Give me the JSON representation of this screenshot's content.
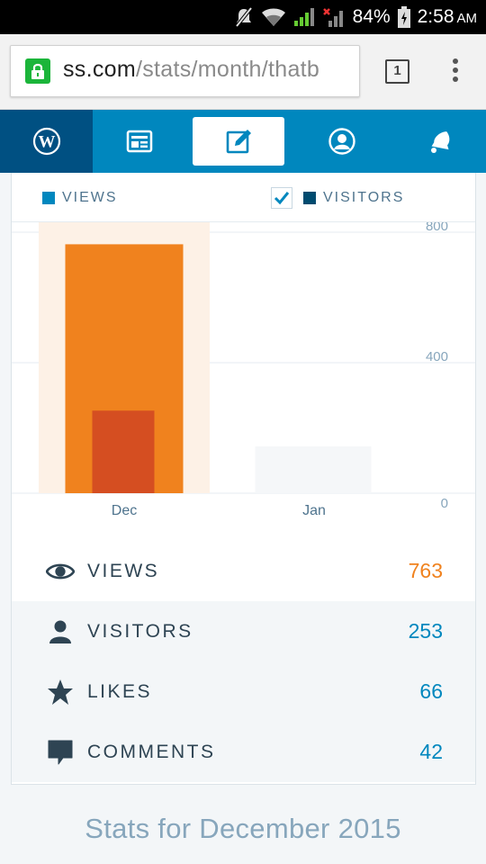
{
  "status_bar": {
    "battery": "84%",
    "time": "2:58",
    "ampm": "AM"
  },
  "browser": {
    "url_host": "ss.com",
    "url_path": "/stats/month/thatb",
    "tab_count": "1"
  },
  "nav": {
    "items": [
      {
        "icon": "wordpress-logo-icon",
        "active": true
      },
      {
        "icon": "reader-icon"
      },
      {
        "icon": "write-post-icon",
        "selected": true
      },
      {
        "icon": "me-profile-icon"
      },
      {
        "icon": "notifications-bell-icon"
      }
    ]
  },
  "legend": {
    "views_label": "VIEWS",
    "visitors_label": "VISITORS",
    "views_color": "#0087be",
    "visitors_color": "#004b6f"
  },
  "chart_data": {
    "type": "bar",
    "categories": [
      "Dec",
      "Jan"
    ],
    "series": [
      {
        "name": "VIEWS",
        "values": [
          763,
          0
        ]
      },
      {
        "name": "VISITORS",
        "values": [
          253,
          0
        ]
      }
    ],
    "ylim": [
      0,
      800
    ],
    "yticks": [
      "800",
      "400",
      "0"
    ],
    "colors": {
      "views": "#f0821e",
      "visitors": "#d54e21",
      "highlight": "#fdf1e6"
    },
    "highlighted_category": "Dec",
    "grid": true
  },
  "stats": [
    {
      "icon": "eye-icon",
      "label": "VIEWS",
      "value": "763",
      "color": "orange"
    },
    {
      "icon": "person-icon",
      "label": "VISITORS",
      "value": "253",
      "color": "blue"
    },
    {
      "icon": "star-icon",
      "label": "LIKES",
      "value": "66",
      "color": "blue"
    },
    {
      "icon": "comment-icon",
      "label": "COMMENTS",
      "value": "42",
      "color": "blue"
    }
  ],
  "footer": {
    "title": "Stats for December 2015"
  }
}
